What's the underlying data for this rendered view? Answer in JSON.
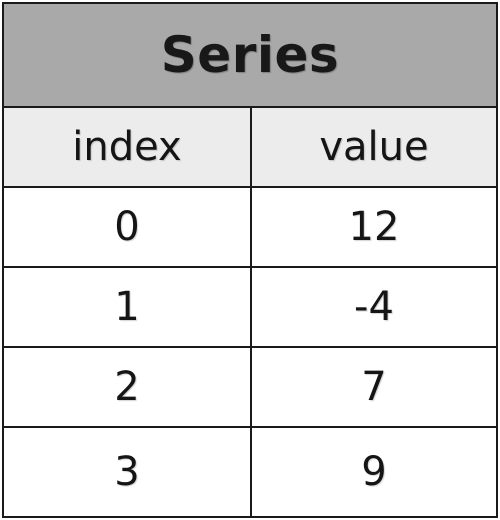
{
  "table": {
    "title": "Series",
    "columns": [
      "index",
      "value"
    ],
    "rows": [
      {
        "index": "0",
        "value": "12"
      },
      {
        "index": "1",
        "value": "-4"
      },
      {
        "index": "2",
        "value": "7"
      },
      {
        "index": "3",
        "value": "9"
      }
    ]
  },
  "colors": {
    "title_background": "#a9a9a9",
    "header_background": "#ececec",
    "border": "#1a1a1a"
  }
}
